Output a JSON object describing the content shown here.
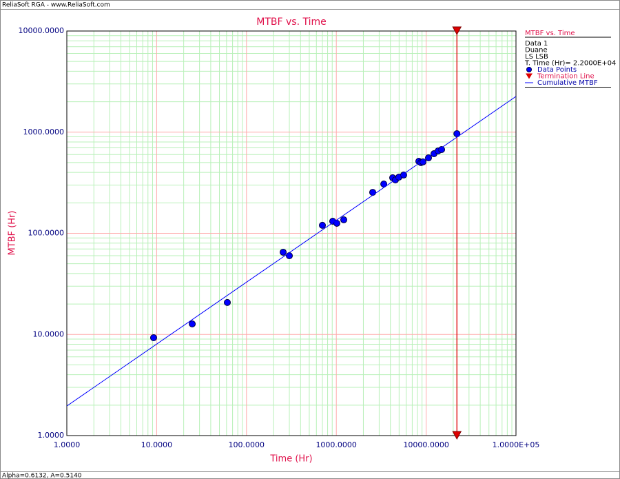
{
  "header": "ReliaSoft RGA - www.ReliaSoft.com",
  "footer": "Alpha=0.6132, A=0.5140",
  "chart_data": {
    "type": "scatter",
    "title": "MTBF vs. Time",
    "xlabel": "Time (Hr)",
    "ylabel": "MTBF (Hr)",
    "log_x": true,
    "log_y": true,
    "grid": true,
    "xlim": [
      1,
      100000
    ],
    "ylim": [
      1,
      10000
    ],
    "xticks": [
      {
        "value": 1,
        "label": "1.0000"
      },
      {
        "value": 10,
        "label": "10.0000"
      },
      {
        "value": 100,
        "label": "100.0000"
      },
      {
        "value": 1000,
        "label": "1000.0000"
      },
      {
        "value": 10000,
        "label": "10000.0000"
      },
      {
        "value": 100000,
        "label": "1.0000E+05"
      }
    ],
    "yticks": [
      {
        "value": 1,
        "label": "1.0000"
      },
      {
        "value": 10,
        "label": "10.0000"
      },
      {
        "value": 100,
        "label": "100.0000"
      },
      {
        "value": 1000,
        "label": "1000.0000"
      },
      {
        "value": 10000,
        "label": "10000.0000"
      }
    ],
    "legend": {
      "position": "right",
      "title": "MTBF vs. Time",
      "lines": [
        "Data 1",
        "Duane",
        "LS LSB",
        "T. Time (Hr)= 2.2000E+04"
      ]
    },
    "series": [
      {
        "name": "Data Points",
        "color": "#0000ff",
        "x": [
          9.25,
          24.9,
          61.2,
          256,
          300,
          700,
          912,
          1014,
          1210,
          2540,
          3375,
          4240,
          4550,
          4970,
          5620,
          8290,
          8750,
          9220,
          10620,
          12220,
          13590,
          14860,
          22000
        ],
        "values": [
          9.29,
          12.7,
          20.7,
          65,
          60,
          120,
          131.6,
          125.6,
          136,
          254,
          307,
          354,
          337,
          359,
          377,
          515,
          500,
          508,
          557,
          612,
          652,
          673,
          966
        ]
      },
      {
        "name": "Cumulative MTBF",
        "type": "line",
        "color": "#0000ff",
        "x": [
          1,
          100000
        ],
        "values": [
          1.96,
          2254
        ]
      }
    ],
    "termination": {
      "name": "Termination Line",
      "color": "#dd0000",
      "x": 22000
    }
  }
}
